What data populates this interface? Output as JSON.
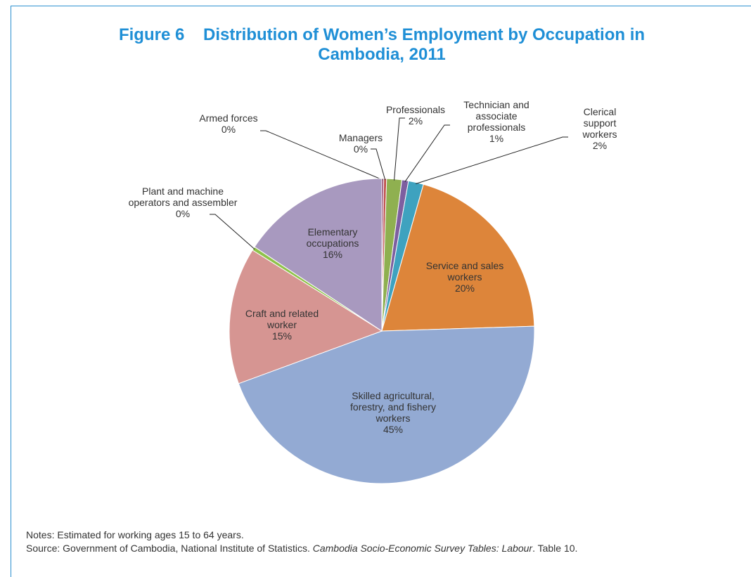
{
  "chart_data": {
    "type": "pie",
    "title": "Figure 6    Distribution of Women’s Employment by Occupation in Cambodia, 2011",
    "categories": [
      "Armed forces",
      "Managers",
      "Professionals",
      "Technician and associate professionals",
      "Clerical support workers",
      "Service and sales workers",
      "Skilled agricultural, forestry, and fishery workers",
      "Craft and related worker",
      "Plant and machine operators and assembler",
      "Elementary occupations"
    ],
    "values": [
      0.2,
      0.3,
      1.6,
      0.7,
      1.6,
      20.1,
      44.9,
      14.5,
      0.4,
      15.7
    ],
    "value_labels": [
      "0%",
      "0%",
      "2%",
      "1%",
      "2%",
      "20%",
      "45%",
      "15%",
      "0%",
      "16%"
    ],
    "colors": [
      "#8e3b64",
      "#c0504d",
      "#8fb050",
      "#7d5fa0",
      "#3ea2bf",
      "#dd853a",
      "#93aad3",
      "#d69592",
      "#8fc24a",
      "#a899bf"
    ],
    "notes": "Notes: Estimated for working ages 15 to 64 years.",
    "source": [
      "Source: Government of Cambodia, National Institute of Statistics. ",
      "Cambodia Socio-Economic Survey Tables: Labour",
      ". Table 10."
    ]
  }
}
